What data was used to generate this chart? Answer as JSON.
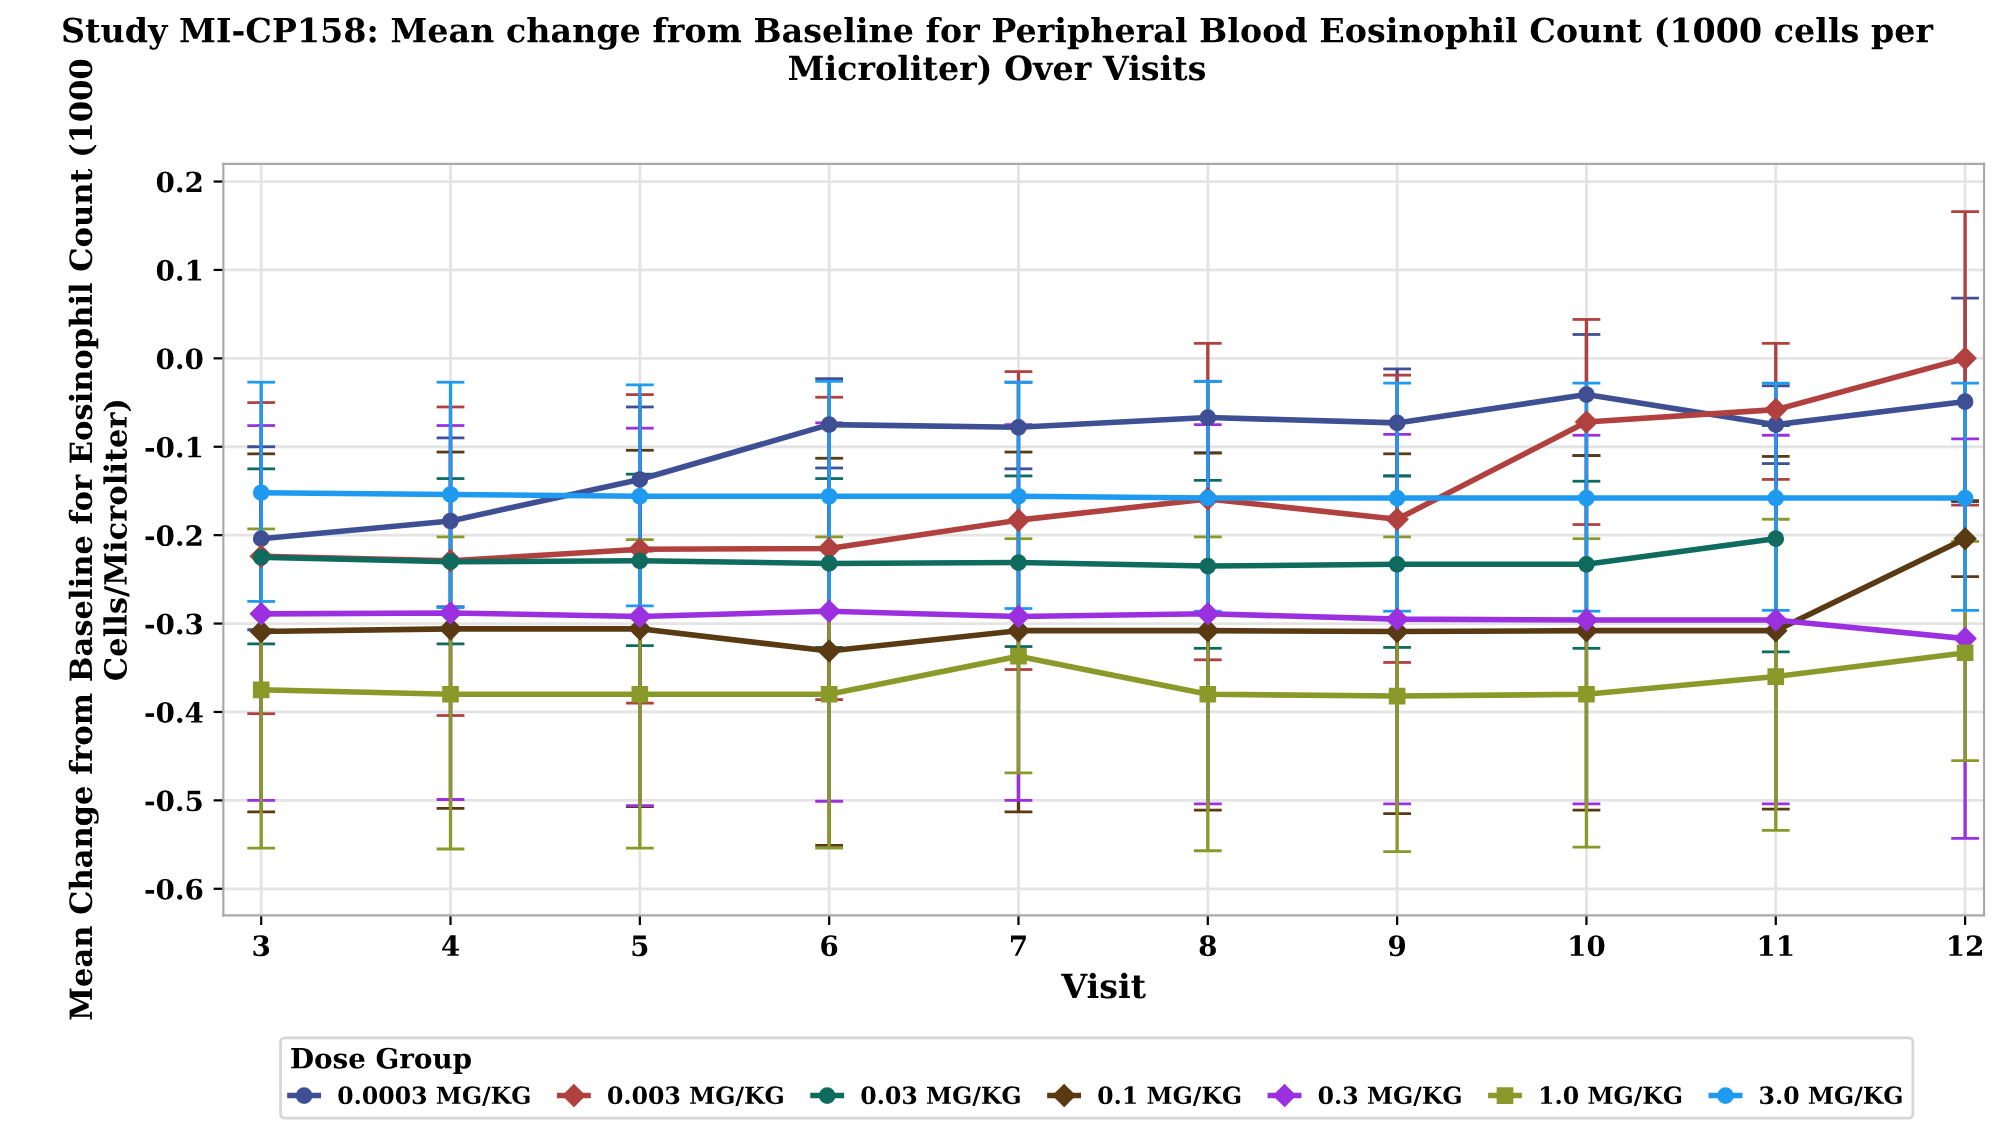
{
  "chart_data": {
    "type": "line",
    "title": "Study MI-CP158: Mean change from Baseline for Peripheral Blood Eosinophil Count (1000 cells per Microliter) Over Visits",
    "xlabel": "Visit",
    "ylabel": "Mean Change from Baseline for Eosinophil Count (1000 Cells/Microliter)",
    "legend_title": "Dose Group",
    "legend": "bottom",
    "grid": true,
    "line_style": "solid",
    "x": [
      3,
      4,
      5,
      6,
      7,
      8,
      9,
      10,
      11,
      12
    ],
    "xlim": [
      2.8,
      12.1
    ],
    "xticks": [
      3,
      4,
      5,
      6,
      7,
      8,
      9,
      10,
      11,
      12
    ],
    "ylim": [
      -0.63,
      0.22
    ],
    "yticks": [
      {
        "value": -0.6,
        "label": "-0.6"
      },
      {
        "value": -0.5,
        "label": "-0.5"
      },
      {
        "value": -0.4,
        "label": "-0.4"
      },
      {
        "value": -0.3,
        "label": "-0.3"
      },
      {
        "value": -0.2,
        "label": "-0.2"
      },
      {
        "value": -0.1,
        "label": "-0.1"
      },
      {
        "value": 0.0,
        "label": "0.0"
      },
      0.1,
      0.2
    ],
    "series": [
      {
        "name": "0.0003 MG/KG",
        "color": "#3f4f94",
        "marker": "circle",
        "values": [
          -0.204,
          -0.184,
          -0.137,
          -0.075,
          -0.078,
          -0.067,
          -0.073,
          -0.041,
          -0.075,
          -0.049
        ],
        "errors": [
          [
            -0.307,
            -0.1
          ],
          [
            -0.281,
            -0.09
          ],
          [
            -0.218,
            -0.055
          ],
          [
            -0.124,
            -0.023
          ],
          [
            -0.125,
            -0.027
          ],
          [
            -0.107,
            -0.026
          ],
          [
            -0.133,
            -0.012
          ],
          [
            -0.11,
            0.027
          ],
          [
            -0.119,
            -0.031
          ],
          [
            -0.162,
            0.068
          ]
        ]
      },
      {
        "name": "0.003 MG/KG",
        "color": "#b0413e",
        "marker": "diamond",
        "values": [
          -0.224,
          -0.229,
          -0.216,
          -0.215,
          -0.183,
          -0.159,
          -0.182,
          -0.072,
          -0.058,
          0.0
        ],
        "errors": [
          [
            -0.402,
            -0.05
          ],
          [
            -0.404,
            -0.055
          ],
          [
            -0.39,
            -0.041
          ],
          [
            -0.386,
            -0.044
          ],
          [
            -0.352,
            -0.015
          ],
          [
            -0.341,
            0.017
          ],
          [
            -0.344,
            -0.019
          ],
          [
            -0.188,
            0.044
          ],
          [
            -0.137,
            0.017
          ],
          [
            -0.166,
            0.166
          ]
        ]
      },
      {
        "name": "0.03 MG/KG",
        "color": "#0e6b5e",
        "marker": "circle",
        "values": [
          -0.225,
          -0.23,
          -0.229,
          -0.232,
          -0.231,
          -0.235,
          -0.233,
          -0.233,
          -0.204,
          null
        ],
        "errors": [
          [
            -0.323,
            -0.125
          ],
          [
            -0.323,
            -0.136
          ],
          [
            -0.325,
            -0.131
          ],
          [
            -0.327,
            -0.136
          ],
          [
            -0.326,
            -0.133
          ],
          [
            -0.328,
            -0.138
          ],
          [
            -0.327,
            -0.133
          ],
          [
            -0.328,
            -0.139
          ],
          [
            -0.332,
            -0.076
          ],
          null
        ]
      },
      {
        "name": "0.1 MG/KG",
        "color": "#5a3a12",
        "marker": "diamond",
        "values": [
          -0.309,
          -0.306,
          -0.306,
          -0.331,
          -0.308,
          -0.308,
          -0.309,
          -0.308,
          -0.308,
          -0.204
        ],
        "errors": [
          [
            -0.513,
            -0.108
          ],
          [
            -0.509,
            -0.106
          ],
          [
            -0.507,
            -0.104
          ],
          [
            -0.551,
            -0.113
          ],
          [
            -0.513,
            -0.106
          ],
          [
            -0.511,
            -0.107
          ],
          [
            -0.515,
            -0.108
          ],
          [
            -0.511,
            -0.11
          ],
          [
            -0.51,
            -0.111
          ],
          [
            -0.247,
            -0.161
          ]
        ]
      },
      {
        "name": "0.3 MG/KG",
        "color": "#9b30e0",
        "marker": "diamond",
        "values": [
          -0.289,
          -0.288,
          -0.292,
          -0.286,
          -0.292,
          -0.289,
          -0.295,
          -0.296,
          -0.296,
          -0.317
        ],
        "errors": [
          [
            -0.5,
            -0.076
          ],
          [
            -0.499,
            -0.076
          ],
          [
            -0.506,
            -0.079
          ],
          [
            -0.501,
            -0.073
          ],
          [
            -0.5,
            -0.075
          ],
          [
            -0.504,
            -0.075
          ],
          [
            -0.504,
            -0.086
          ],
          [
            -0.504,
            -0.087
          ],
          [
            -0.504,
            -0.087
          ],
          [
            -0.543,
            -0.091
          ]
        ]
      },
      {
        "name": "1.0 MG/KG",
        "color": "#8a9a2a",
        "marker": "square",
        "values": [
          -0.375,
          -0.38,
          -0.38,
          -0.38,
          -0.337,
          -0.38,
          -0.382,
          -0.38,
          -0.36,
          -0.333
        ],
        "errors": [
          [
            -0.554,
            -0.193
          ],
          [
            -0.555,
            -0.202
          ],
          [
            -0.554,
            -0.205
          ],
          [
            -0.554,
            -0.202
          ],
          [
            -0.469,
            -0.204
          ],
          [
            -0.557,
            -0.202
          ],
          [
            -0.558,
            -0.202
          ],
          [
            -0.553,
            -0.204
          ],
          [
            -0.534,
            -0.182
          ],
          [
            -0.455,
            -0.207
          ]
        ]
      },
      {
        "name": "3.0 MG/KG",
        "color": "#1e9bf0",
        "marker": "circle",
        "values": [
          -0.152,
          -0.154,
          -0.156,
          -0.156,
          -0.156,
          -0.158,
          -0.158,
          -0.158,
          -0.158,
          -0.158
        ],
        "errors": [
          [
            -0.275,
            -0.027
          ],
          [
            -0.282,
            -0.027
          ],
          [
            -0.28,
            -0.03
          ],
          [
            -0.286,
            -0.026
          ],
          [
            -0.283,
            -0.027
          ],
          [
            -0.286,
            -0.026
          ],
          [
            -0.286,
            -0.028
          ],
          [
            -0.286,
            -0.028
          ],
          [
            -0.285,
            -0.028
          ],
          [
            -0.285,
            -0.028
          ]
        ]
      }
    ]
  }
}
